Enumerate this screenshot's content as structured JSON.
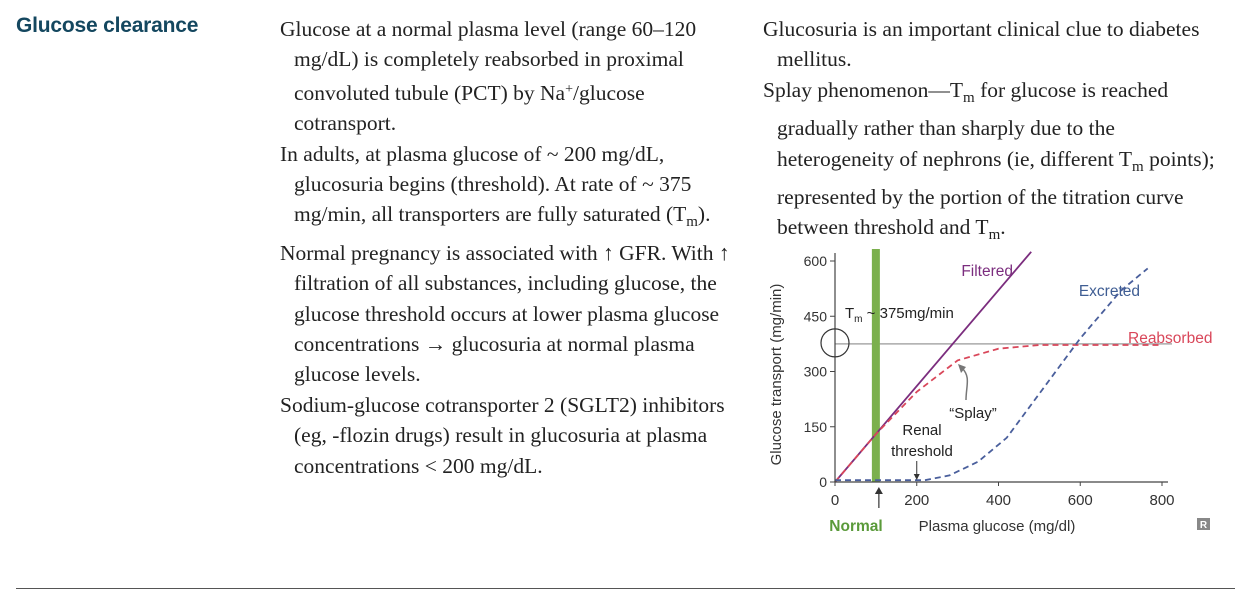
{
  "heading": "Glucose clearance",
  "col1": {
    "p1": {
      "a": "Glucose at a normal plasma level (range 60–120 mg/dL) is completely reabsorbed in proximal convoluted tubule (PCT) by Na",
      "sup": "+",
      "b": "/glucose cotransport."
    },
    "p2": {
      "a": "In adults, at plasma glucose of ~ 200 mg/dL, glucosuria begins (threshold). At rate of ~ 375 mg/min, all transporters are fully saturated (T",
      "sub": "m",
      "b": ")."
    },
    "p3": "Normal pregnancy is associated with ↑ GFR. With ↑ filtration of all substances, including glucose, the glucose threshold occurs at lower plasma glucose concentrations → glucosuria at normal plasma glucose levels.",
    "p4": "Sodium-glucose cotransporter 2 (SGLT2) inhibitors (eg, -flozin drugs) result in glucosuria at plasma concentrations < 200 mg/dL."
  },
  "col2": {
    "p1": "Glucosuria is an important clinical clue to diabetes mellitus.",
    "p2": {
      "a": "Splay phenomenon—T",
      "sub1": "m",
      "b": " for glucose is reached gradually rather than sharply due to the heterogeneity of nephrons (ie, different T",
      "sub2": "m",
      "c": " points); represented by the portion of the titration curve between threshold and T",
      "sub3": "m",
      "d": "."
    }
  },
  "chart_data": {
    "type": "line",
    "xlabel": "Plasma glucose (mg/dl)",
    "ylabel": "Glucose transport (mg/min)",
    "xlim": [
      0,
      800
    ],
    "ylim": [
      0,
      600
    ],
    "x_ticks": [
      "0",
      "200",
      "400",
      "600",
      "800"
    ],
    "y_ticks": [
      "0",
      "150",
      "300",
      "450",
      "600"
    ],
    "series": [
      {
        "name": "Filtered",
        "color": "#7b2d7e",
        "style": "solid",
        "points": [
          [
            0,
            0
          ],
          [
            480,
            625
          ]
        ]
      },
      {
        "name": "Reabsorbed",
        "color": "#d9475a",
        "style": "dashed",
        "points": [
          [
            0,
            0
          ],
          [
            100,
            130
          ],
          [
            200,
            245
          ],
          [
            300,
            330
          ],
          [
            400,
            362
          ],
          [
            500,
            372
          ],
          [
            800,
            372
          ]
        ]
      },
      {
        "name": "Excreted",
        "color": "#4a5f9c",
        "style": "dashed",
        "points": [
          [
            0,
            5
          ],
          [
            150,
            5
          ],
          [
            220,
            5
          ],
          [
            280,
            18
          ],
          [
            350,
            55
          ],
          [
            420,
            120
          ],
          [
            500,
            240
          ],
          [
            600,
            390
          ],
          [
            700,
            520
          ],
          [
            765,
            580
          ]
        ]
      }
    ],
    "annotations": {
      "tm_prefix": "T",
      "tm_sub": "m",
      "tm_value": "~ 375mg/min",
      "splay": "“Splay”",
      "renal": "Renal",
      "threshold": "threshold",
      "normal": "Normal",
      "tm_level": 375,
      "normal_band_x": 100,
      "threshold_x": 200
    },
    "colors": {
      "normal_band": "#7bb04d",
      "tm_line": "#aaaaaa",
      "axis": "#444444",
      "normal_text": "#5a9a3a",
      "excreted_label": "#3f5d93",
      "filtered_label": "#7b2d7e",
      "reabsorbed_label": "#d9475a"
    }
  },
  "logo": "R"
}
